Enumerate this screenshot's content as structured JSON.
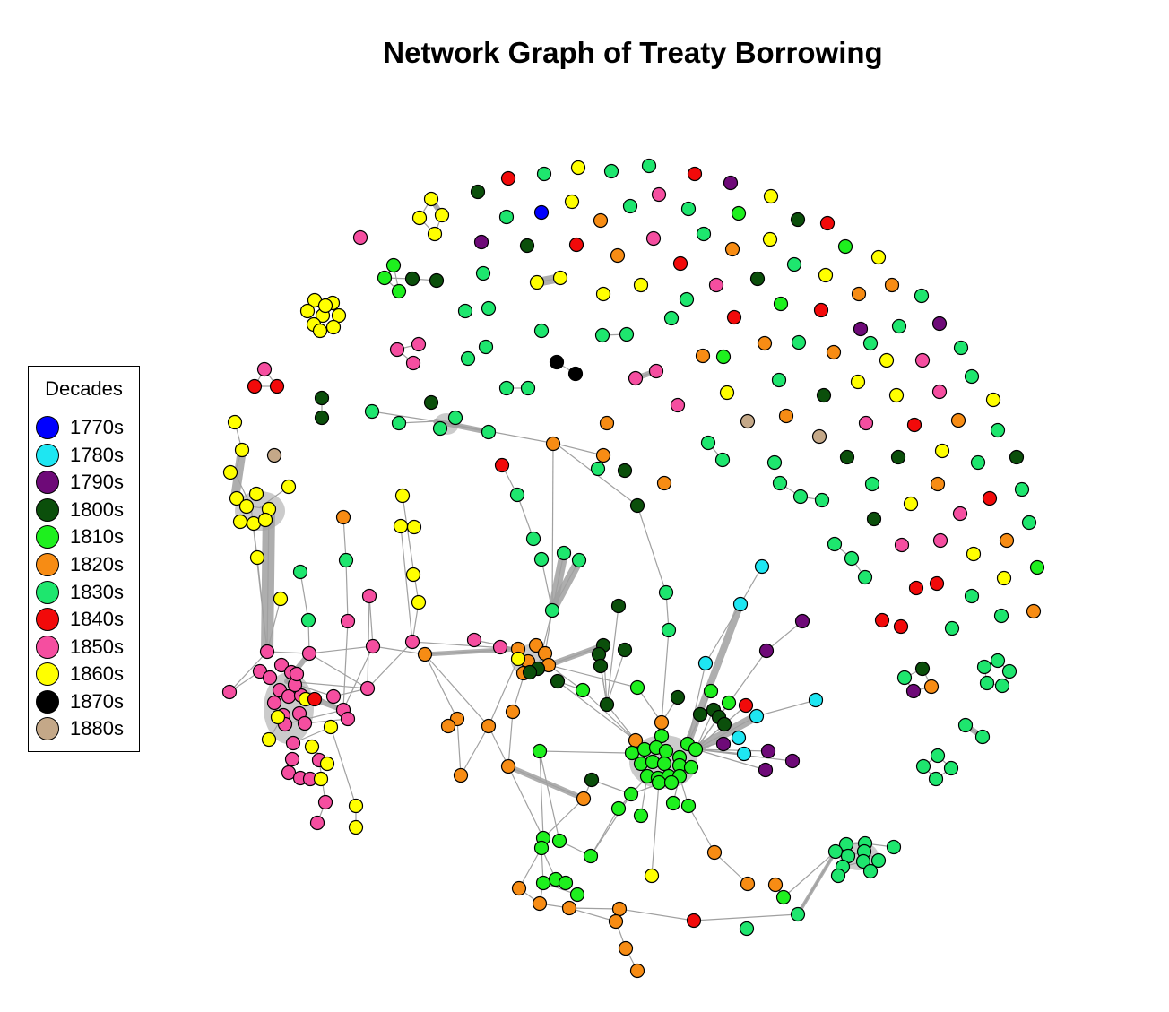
{
  "title": "Network Graph of Treaty Borrowing",
  "legend": {
    "title": "Decades",
    "items": [
      {
        "label": "1770s",
        "color": "#0000ff"
      },
      {
        "label": "1780s",
        "color": "#1ee6f2"
      },
      {
        "label": "1790s",
        "color": "#6e0a78"
      },
      {
        "label": "1800s",
        "color": "#0b4f0b"
      },
      {
        "label": "1810s",
        "color": "#1ef01e"
      },
      {
        "label": "1820s",
        "color": "#f78c14"
      },
      {
        "label": "1830s",
        "color": "#1ee66e"
      },
      {
        "label": "1840s",
        "color": "#f20a0a"
      },
      {
        "label": "1850s",
        "color": "#f54ea0"
      },
      {
        "label": "1860s",
        "color": "#ffff00"
      },
      {
        "label": "1870s",
        "color": "#000000"
      },
      {
        "label": "1880s",
        "color": "#c4a888"
      }
    ]
  },
  "edge_color": "#a0a0a0",
  "node_border_color": "#000000"
}
